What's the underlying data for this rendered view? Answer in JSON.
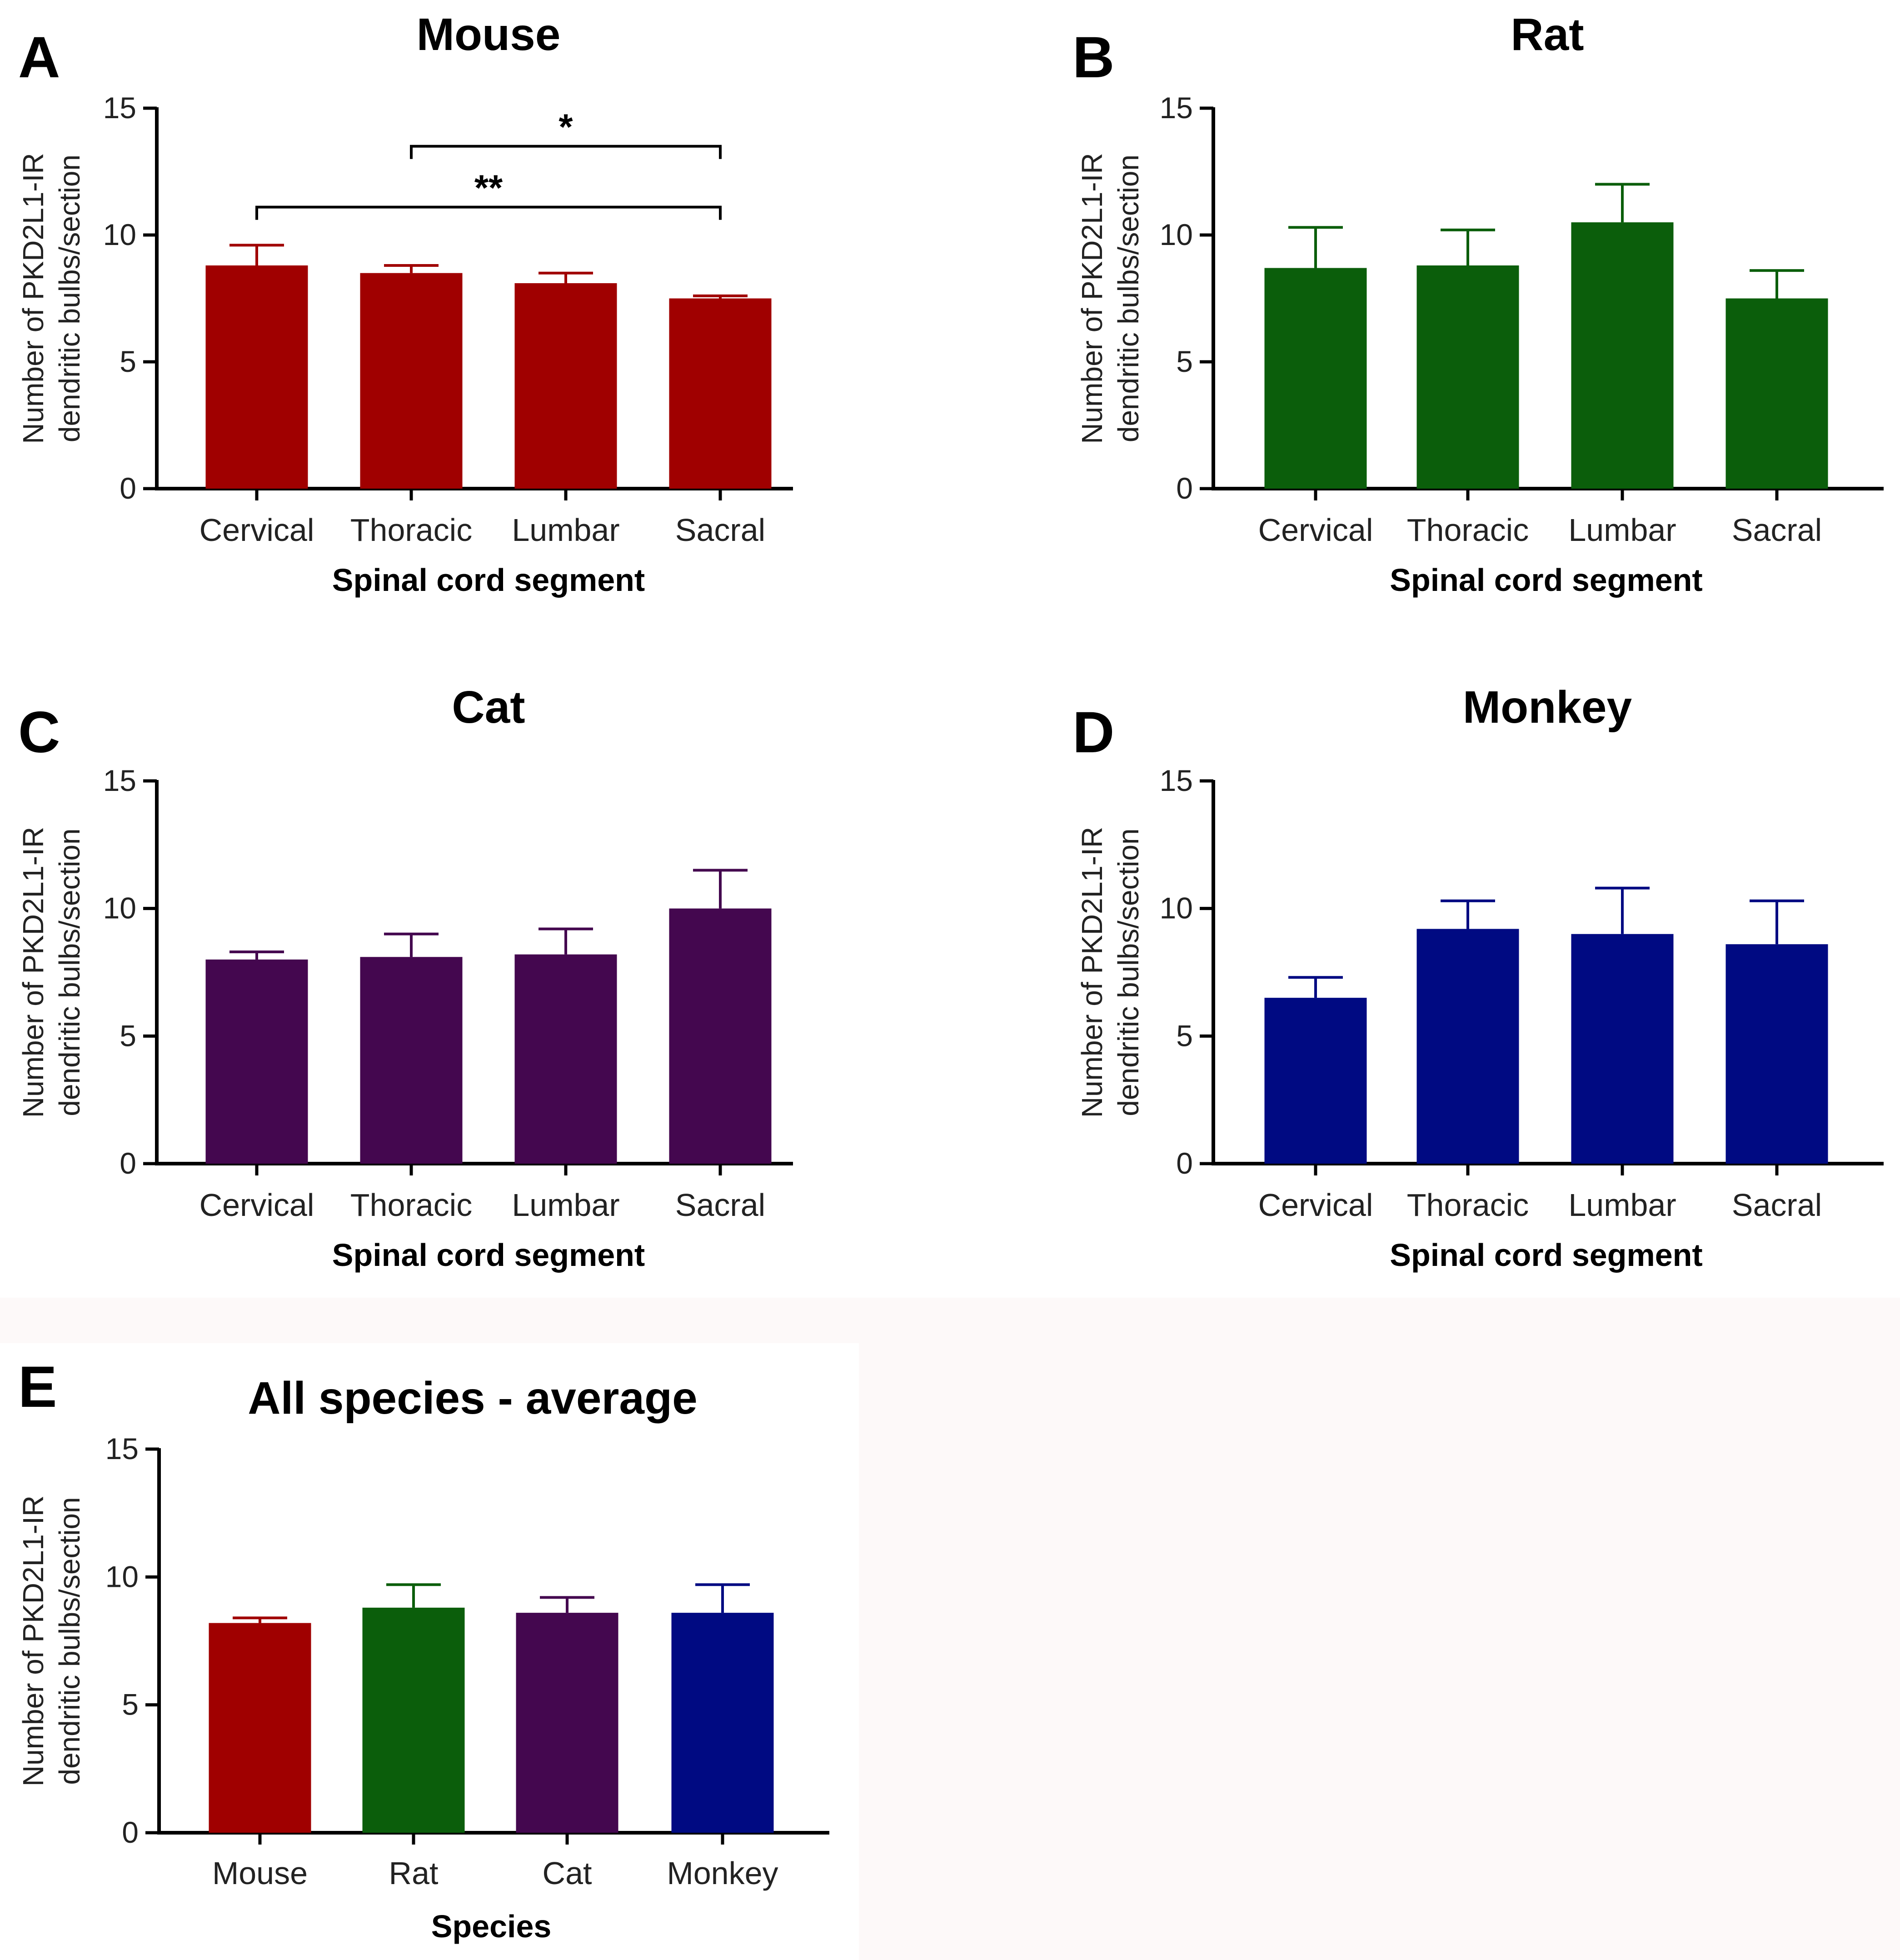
{
  "chart_data": [
    {
      "panel": "A",
      "type": "bar",
      "title": "Mouse",
      "xlabel": "Spinal cord segment",
      "ylabel": [
        "Number of PKD2L1-IR",
        "dendritic bulbs/section"
      ],
      "categories": [
        "Cervical",
        "Thoracic",
        "Lumbar",
        "Sacral"
      ],
      "values": [
        8.8,
        8.5,
        8.1,
        7.5
      ],
      "errors": [
        0.8,
        0.3,
        0.4,
        0.1
      ],
      "color": "#a00000",
      "ylim": [
        0,
        15
      ],
      "yticks": [
        0,
        5,
        10,
        15
      ],
      "significance": [
        {
          "from": "Thoracic",
          "to": "Sacral",
          "label": "*",
          "y": 13.5
        },
        {
          "from": "Cervical",
          "to": "Sacral",
          "label": "**",
          "y": 11.1
        }
      ]
    },
    {
      "panel": "B",
      "type": "bar",
      "title": "Rat",
      "xlabel": "Spinal cord segment",
      "ylabel": [
        "Number of PKD2L1-IR",
        "dendritic bulbs/section"
      ],
      "categories": [
        "Cervical",
        "Thoracic",
        "Lumbar",
        "Sacral"
      ],
      "values": [
        8.7,
        8.8,
        10.5,
        7.5
      ],
      "errors": [
        1.6,
        1.4,
        1.5,
        1.1
      ],
      "color": "#0b5e0b",
      "ylim": [
        0,
        15
      ],
      "yticks": [
        0,
        5,
        10,
        15
      ]
    },
    {
      "panel": "C",
      "type": "bar",
      "title": "Cat",
      "xlabel": "Spinal cord segment",
      "ylabel": [
        "Number of PKD2L1-IR",
        "dendritic bulbs/section"
      ],
      "categories": [
        "Cervical",
        "Thoracic",
        "Lumbar",
        "Sacral"
      ],
      "values": [
        8.0,
        8.1,
        8.2,
        10.0
      ],
      "errors": [
        0.3,
        0.9,
        1.0,
        1.5
      ],
      "color": "#44074f",
      "ylim": [
        0,
        15
      ],
      "yticks": [
        0,
        5,
        10,
        15
      ]
    },
    {
      "panel": "D",
      "type": "bar",
      "title": "Monkey",
      "xlabel": "Spinal cord segment",
      "ylabel": [
        "Number of PKD2L1-IR",
        "dendritic bulbs/section"
      ],
      "categories": [
        "Cervical",
        "Thoracic",
        "Lumbar",
        "Sacral"
      ],
      "values": [
        6.5,
        9.2,
        9.0,
        8.6
      ],
      "errors": [
        0.8,
        1.1,
        1.8,
        1.7
      ],
      "color": "#000a82",
      "ylim": [
        0,
        15
      ],
      "yticks": [
        0,
        5,
        10,
        15
      ]
    },
    {
      "panel": "E",
      "type": "bar",
      "title": "All species - average",
      "xlabel": "Species",
      "ylabel": [
        "Number of PKD2L1-IR",
        "dendritic bulbs/section"
      ],
      "categories": [
        "Mouse",
        "Rat",
        "Cat",
        "Monkey"
      ],
      "values": [
        8.2,
        8.8,
        8.6,
        8.6
      ],
      "errors": [
        0.2,
        0.9,
        0.6,
        1.1
      ],
      "colors": [
        "#a00000",
        "#0b5e0b",
        "#44074f",
        "#000a82"
      ],
      "ylim": [
        0,
        15
      ],
      "yticks": [
        0,
        5,
        10,
        15
      ]
    }
  ]
}
